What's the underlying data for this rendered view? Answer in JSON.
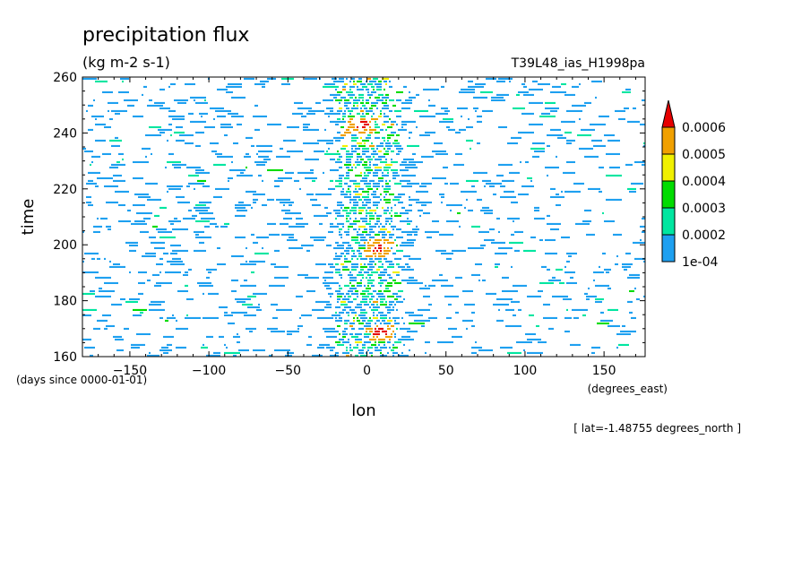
{
  "chart_data": {
    "type": "heatmap",
    "title": "precipitation flux",
    "units": "(kg m-2 s-1)",
    "experiment": "T39L48_ias_H1998pa",
    "xlabel": "lon",
    "xunits": "(degrees_east)",
    "ylabel": "time",
    "yunits": "(days since 0000-01-01)",
    "annotation": "[ lat=-1.48755 degrees_north ]",
    "xlim": [
      -180,
      176
    ],
    "ylim": [
      160,
      260
    ],
    "xticks": [
      -150,
      -100,
      -50,
      0,
      50,
      100,
      150
    ],
    "yticks": [
      160,
      180,
      200,
      220,
      240,
      260
    ],
    "contour_levels": [
      "1e-04",
      "0.0002",
      "0.0003",
      "0.0004",
      "0.0005",
      "0.0006"
    ],
    "level_colors": [
      "#1ea0f0",
      "#00e6a0",
      "#00dc00",
      "#f0f000",
      "#f0a000",
      "#e60000"
    ],
    "grid": false,
    "legend_position": "right",
    "features": [
      {
        "description": "persistent convective band centered near 0 degrees_east",
        "lon_center": 0,
        "lon_halfwidth": 20,
        "time_range": [
          160,
          260
        ]
      },
      {
        "description": "peak near lon 6, time 199",
        "lon": 6,
        "time": 199,
        "value": 0.0006
      },
      {
        "description": "peak near lon 8, time 169",
        "lon": 8,
        "time": 169,
        "value": 0.0006
      },
      {
        "description": "peak near lon -5, time 243",
        "lon": -5,
        "time": 243,
        "value": 0.0006
      }
    ]
  }
}
